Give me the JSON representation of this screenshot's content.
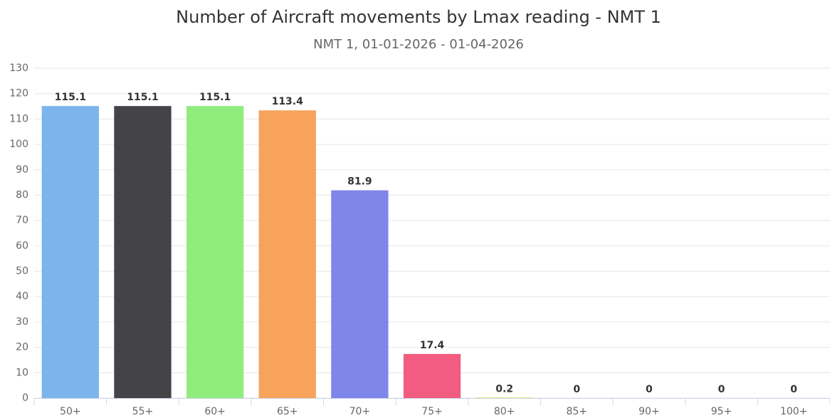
{
  "chart_data": {
    "type": "bar",
    "title": "Number of Aircraft movements by Lmax reading - NMT 1",
    "subtitle": "NMT 1, 01-01-2026 - 01-04-2026",
    "categories": [
      "50+",
      "55+",
      "60+",
      "65+",
      "70+",
      "75+",
      "80+",
      "85+",
      "90+",
      "95+",
      "100+"
    ],
    "values": [
      115.1,
      115.1,
      115.1,
      113.4,
      81.9,
      17.4,
      0.2,
      0,
      0,
      0,
      0
    ],
    "colors": [
      "#7cb5ec",
      "#434348",
      "#90ed7d",
      "#f7a35c",
      "#8085e9",
      "#f15c80",
      "#e4d354",
      "#2b908f",
      "#f45b5b",
      "#91e8e1",
      "#7cb5ec"
    ],
    "ylim": [
      0,
      130
    ],
    "yticks": [
      0,
      10,
      20,
      30,
      40,
      50,
      60,
      70,
      80,
      90,
      100,
      110,
      120,
      130
    ],
    "grid": true
  }
}
